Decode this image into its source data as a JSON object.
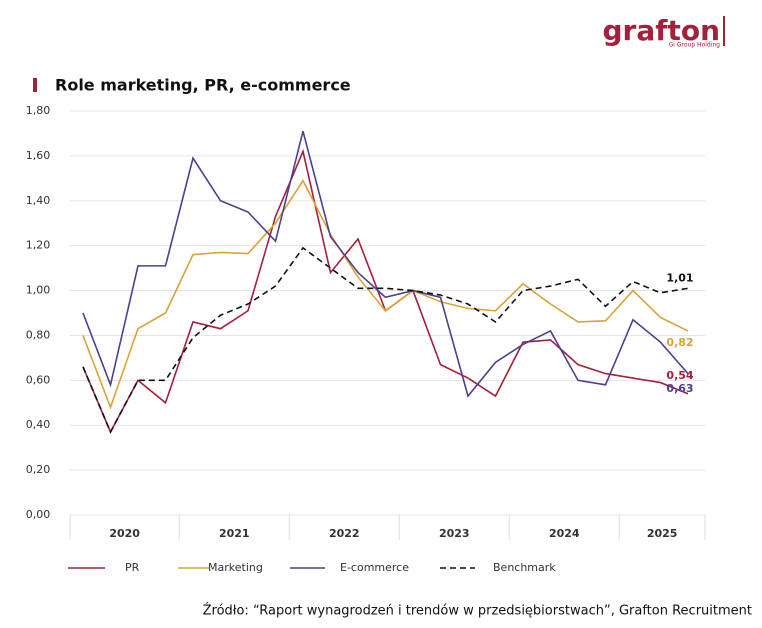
{
  "logo": {
    "name": "grafton",
    "tagline": "Gi Group Holding"
  },
  "source": "Źródło: “Raport wynagrodzeń i trendów w przedsiębiorstwach”, Grafton Recruitment",
  "chart_data": {
    "type": "line",
    "title": "Role marketing, PR, e-commerce",
    "categories": [
      null,
      null,
      null,
      null,
      null,
      null,
      null,
      null,
      null,
      null,
      null,
      null,
      null,
      null,
      null,
      null,
      null,
      null,
      null,
      null,
      null,
      null,
      null
    ],
    "x_groups": [
      "2020",
      "2021",
      "2022",
      "2023",
      "2024",
      "2025"
    ],
    "ylim": [
      0,
      1.8
    ],
    "yticks": [
      {
        "value": 0,
        "label": "0,00"
      },
      {
        "value": 0.2,
        "label": "0,20"
      },
      {
        "value": 0.4,
        "label": "0,40"
      },
      {
        "value": 0.6,
        "label": "0,60"
      },
      {
        "value": 0.8,
        "label": "0,80"
      },
      {
        "value": 1,
        "label": "1,00"
      },
      {
        "value": 1.2,
        "label": "1,20"
      },
      {
        "value": 1.4,
        "label": "1,40"
      },
      {
        "value": 1.6,
        "label": "1,60"
      },
      {
        "value": 1.8,
        "label": "1,80"
      }
    ],
    "grid": true,
    "series": [
      {
        "name": "PR",
        "color": "#a3213a",
        "dash": false,
        "values": [
          0.66,
          0.37,
          0.6,
          0.5,
          0.86,
          0.83,
          0.91,
          1.33,
          1.62,
          1.08,
          1.23,
          0.91,
          1.0,
          0.67,
          0.61,
          0.53,
          0.77,
          0.78,
          0.67,
          0.63,
          0.61,
          0.59,
          0.54
        ],
        "end_label": "0,54"
      },
      {
        "name": "Marketing",
        "color": "#d9a33a",
        "dash": false,
        "values": [
          0.8,
          0.48,
          0.83,
          0.9,
          1.16,
          1.17,
          1.165,
          1.3,
          1.49,
          1.25,
          1.06,
          0.91,
          1.0,
          0.95,
          0.92,
          0.91,
          1.03,
          0.94,
          0.86,
          0.865,
          1.0,
          0.88,
          0.82
        ],
        "end_label": "0,82"
      },
      {
        "name": "E-commerce",
        "color": "#4b3f8f",
        "dash": false,
        "values": [
          0.9,
          0.58,
          1.11,
          1.11,
          1.59,
          1.4,
          1.35,
          1.22,
          1.71,
          1.24,
          1.08,
          0.97,
          1.0,
          0.97,
          0.53,
          0.68,
          0.76,
          0.82,
          0.6,
          0.58,
          0.87,
          0.77,
          0.63
        ],
        "end_label": "0,63"
      },
      {
        "name": "Benchmark",
        "color": "#111111",
        "dash": true,
        "values": [
          0.66,
          0.37,
          0.6,
          0.6,
          0.79,
          0.89,
          0.94,
          1.02,
          1.19,
          1.1,
          1.01,
          1.01,
          1.0,
          0.98,
          0.94,
          0.86,
          1.0,
          1.02,
          1.05,
          0.93,
          1.04,
          0.99,
          1.01
        ],
        "end_label": "1,01"
      }
    ]
  }
}
